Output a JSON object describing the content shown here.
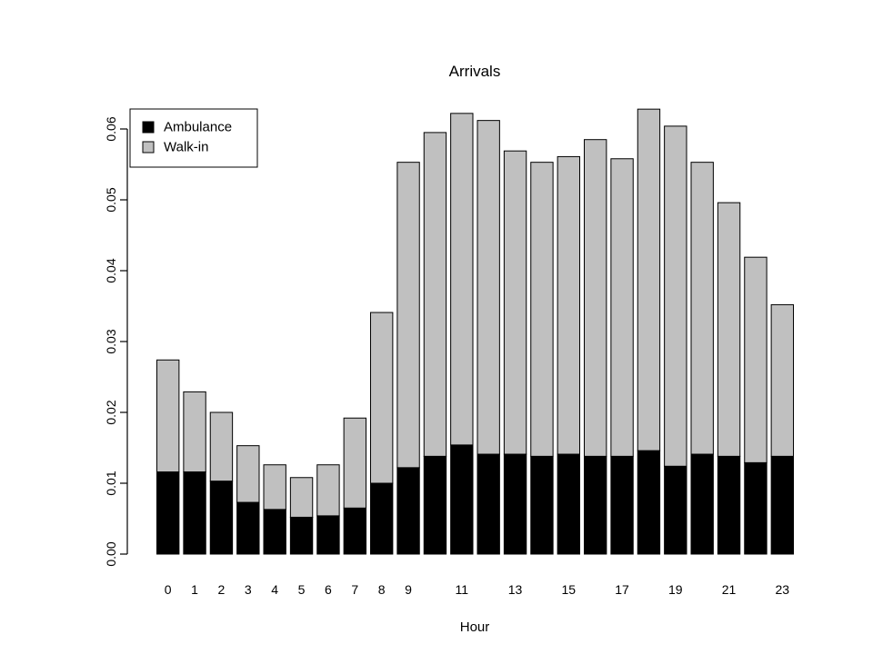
{
  "chart_data": {
    "type": "bar",
    "stacked": true,
    "title": "Arrivals",
    "xlabel": "Hour",
    "ylabel": "",
    "ylim": [
      0,
      0.063
    ],
    "yticks": [
      0.0,
      0.01,
      0.02,
      0.03,
      0.04,
      0.05,
      0.06
    ],
    "ytick_labels": [
      "0.00",
      "0.01",
      "0.02",
      "0.03",
      "0.04",
      "0.05",
      "0.06"
    ],
    "grid": false,
    "legend_position": "top-left",
    "categories": [
      "0",
      "1",
      "2",
      "3",
      "4",
      "5",
      "6",
      "7",
      "8",
      "9",
      "10",
      "11",
      "12",
      "13",
      "14",
      "15",
      "16",
      "17",
      "18",
      "19",
      "20",
      "21",
      "22",
      "23"
    ],
    "x_tick_labels": [
      "0",
      "1",
      "2",
      "3",
      "4",
      "5",
      "6",
      "7",
      "8",
      "9",
      "",
      "11",
      "",
      "13",
      "",
      "15",
      "",
      "17",
      "",
      "19",
      "",
      "21",
      "",
      "23"
    ],
    "series": [
      {
        "name": "Ambulance",
        "color": "#000000",
        "values": [
          0.0116,
          0.0116,
          0.0103,
          0.0073,
          0.0063,
          0.0052,
          0.0054,
          0.0065,
          0.01,
          0.0122,
          0.0138,
          0.0154,
          0.0141,
          0.0141,
          0.0138,
          0.0141,
          0.0138,
          0.0138,
          0.0146,
          0.0124,
          0.0141,
          0.0138,
          0.0129,
          0.0138
        ]
      },
      {
        "name": "Walk-in",
        "color": "#c0c0c0",
        "values": [
          0.0158,
          0.0113,
          0.0097,
          0.008,
          0.0063,
          0.0056,
          0.0072,
          0.0127,
          0.0241,
          0.0431,
          0.0457,
          0.0468,
          0.0471,
          0.0428,
          0.0415,
          0.042,
          0.0447,
          0.042,
          0.0482,
          0.048,
          0.0412,
          0.0358,
          0.029,
          0.0214
        ]
      }
    ]
  }
}
